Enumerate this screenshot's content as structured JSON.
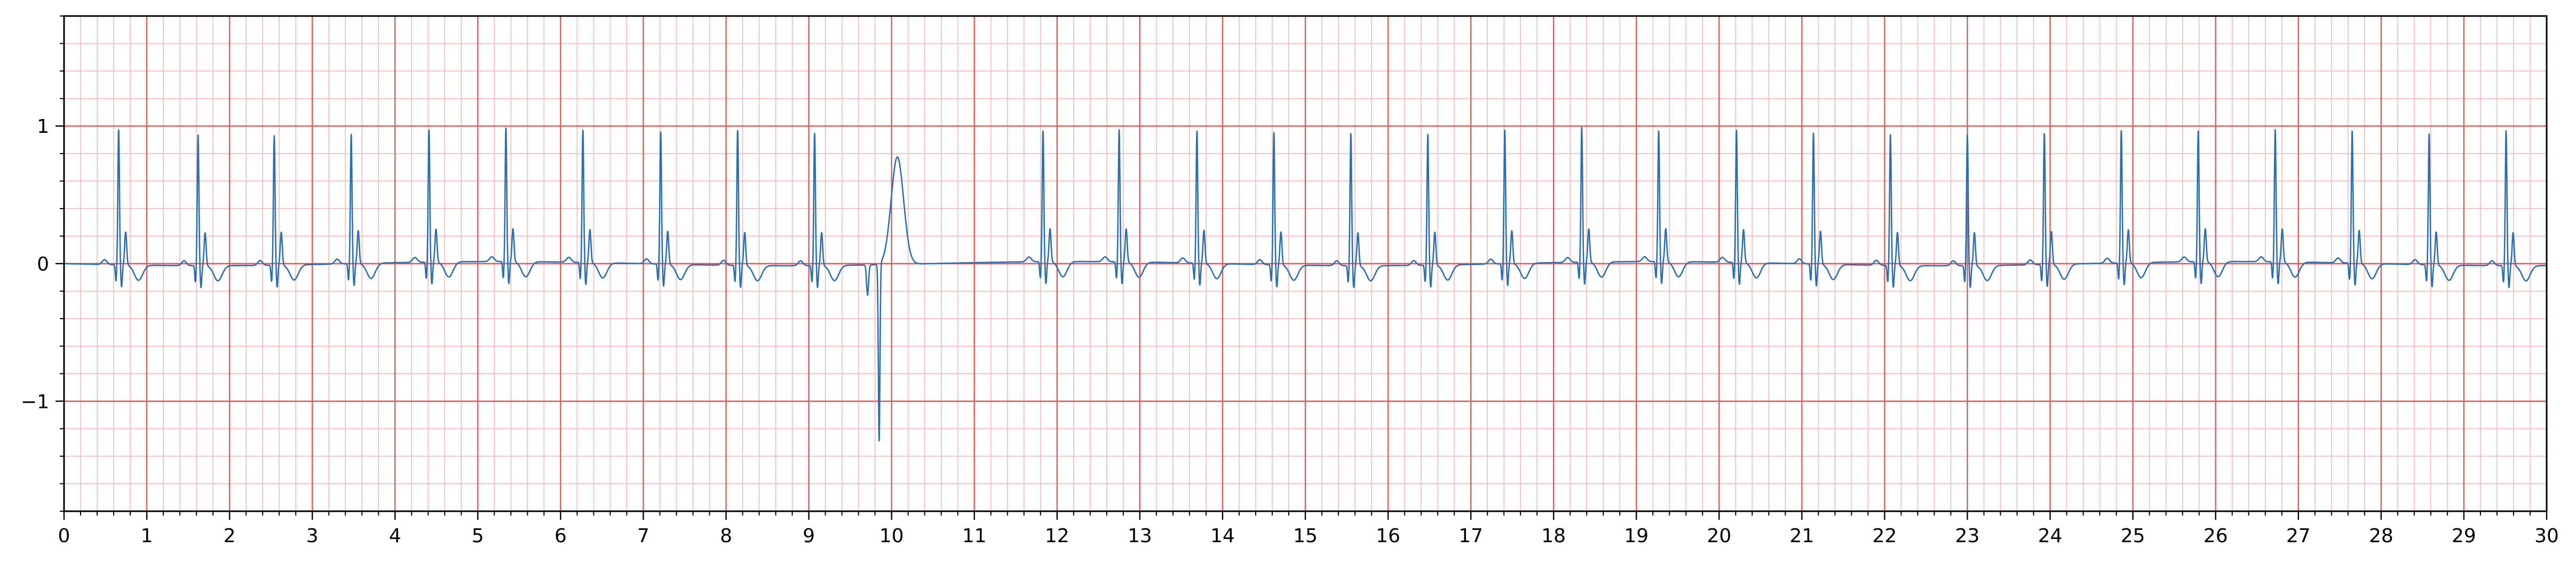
{
  "chart_data": {
    "type": "line",
    "title": "",
    "xlabel": "",
    "ylabel": "",
    "xlim": [
      0,
      30
    ],
    "ylim": [
      -1.8,
      1.8
    ],
    "x_ticks": [
      0,
      1,
      2,
      3,
      4,
      5,
      6,
      7,
      8,
      9,
      10,
      11,
      12,
      13,
      14,
      15,
      16,
      17,
      18,
      19,
      20,
      21,
      22,
      23,
      24,
      25,
      26,
      27,
      28,
      29,
      30
    ],
    "x_tick_labels": [
      "0",
      "1",
      "2",
      "3",
      "4",
      "5",
      "6",
      "7",
      "8",
      "9",
      "10",
      "11",
      "12",
      "13",
      "14",
      "15",
      "16",
      "17",
      "18",
      "19",
      "20",
      "21",
      "22",
      "23",
      "24",
      "25",
      "26",
      "27",
      "28",
      "29",
      "30"
    ],
    "y_ticks": [
      -1,
      0,
      1
    ],
    "y_tick_labels": [
      "−1",
      "0",
      "1"
    ],
    "grid": {
      "major": true,
      "minor": true,
      "x_major_step": 1,
      "x_minor_step": 0.2,
      "y_major_step": 1,
      "y_minor_step": 0.2
    },
    "colors": {
      "major_grid": "#e05a5a",
      "minor_grid": "#f7b8b8",
      "trace": "#2b6fb0",
      "axes": "#000000"
    },
    "series": [
      {
        "name": "",
        "beat_times": [
          0.66,
          1.62,
          2.54,
          3.47,
          4.41,
          5.34,
          6.27,
          7.21,
          8.14,
          9.07,
          11.83,
          12.75,
          13.69,
          14.62,
          15.55,
          16.48,
          17.41,
          18.34,
          19.27,
          20.21,
          21.14,
          22.07,
          23.0,
          23.93,
          24.86,
          25.79,
          26.72,
          27.65,
          28.58,
          29.51
        ],
        "beat_amplitudes": [
          0.91,
          0.88,
          0.87,
          0.87,
          0.89,
          0.9,
          0.89,
          0.89,
          0.91,
          0.89,
          0.88,
          0.89,
          0.89,
          0.89,
          0.89,
          0.88,
          0.9,
          0.91,
          0.88,
          0.89,
          0.88,
          0.88,
          0.88,
          0.88,
          0.89,
          0.88,
          0.89,
          0.89,
          0.88,
          0.91
        ],
        "ectopic_beat": {
          "time": 9.85,
          "min": -1.29,
          "max": 0.78
        },
        "baseline": 0.0
      }
    ]
  }
}
